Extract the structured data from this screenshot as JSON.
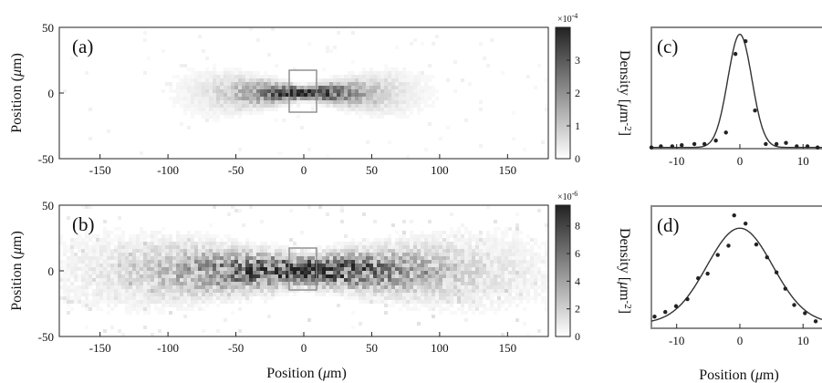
{
  "chart_data": [
    {
      "panel": "(a)",
      "type": "heatmap",
      "xlabel": "",
      "ylabel": "Position (μm)",
      "xlim": [
        -180,
        180
      ],
      "ylim": [
        50,
        -50
      ],
      "xticks": [
        "-150",
        "-100",
        "-50",
        "0",
        "50",
        "100",
        "150"
      ],
      "yticks": [
        "-50",
        "0",
        "50"
      ],
      "roi": {
        "x": [
          -5,
          10
        ],
        "y": [
          -12,
          12
        ]
      },
      "colorbar": {
        "label": "Density [μm⁻²]",
        "exponent": "×10⁻⁴",
        "range": [
          0,
          4
        ],
        "ticks": [
          "0",
          "1",
          "2",
          "3"
        ],
        "colormap": [
          "#ffffff",
          "#222222"
        ]
      },
      "cloud": {
        "peak_density": 3.8,
        "axial_sigma": 40,
        "halfwidth_center": 2.5,
        "halfwidth_edge": 24,
        "noise": "low"
      }
    },
    {
      "panel": "(b)",
      "type": "heatmap",
      "xlabel": "Position (μm)",
      "ylabel": "Position (μm)",
      "xlim": [
        -180,
        180
      ],
      "ylim": [
        50,
        -50
      ],
      "xticks": [
        "-150",
        "-100",
        "-50",
        "0",
        "50",
        "100",
        "150"
      ],
      "yticks": [
        "-50",
        "0",
        "50"
      ],
      "roi": {
        "x": [
          -5,
          10
        ],
        "y": [
          -12,
          12
        ]
      },
      "colorbar": {
        "label": "Density [μm⁻²]",
        "exponent": "×10⁻⁶",
        "range": [
          0,
          9.5
        ],
        "ticks": [
          "0",
          "2",
          "4",
          "6",
          "8"
        ],
        "colormap": [
          "#ffffff",
          "#222222"
        ]
      },
      "cloud": {
        "peak_density": 8,
        "axial_sigma": 80,
        "halfwidth_center": 6,
        "halfwidth_edge": 20,
        "noise": "high"
      }
    },
    {
      "panel": "(c)",
      "type": "scatter",
      "xlabel": "",
      "ylabel": "",
      "xlim": [
        -14,
        13
      ],
      "ylim": [
        0,
        1.05
      ],
      "xticks": [
        "-10",
        "0",
        "10"
      ],
      "points": [
        {
          "x": -14,
          "y": 0.01
        },
        {
          "x": -12.5,
          "y": 0.02
        },
        {
          "x": -10.7,
          "y": 0.02
        },
        {
          "x": -9.2,
          "y": 0.03
        },
        {
          "x": -7.2,
          "y": 0.04
        },
        {
          "x": -5.6,
          "y": 0.04
        },
        {
          "x": -3.8,
          "y": 0.07
        },
        {
          "x": -2.2,
          "y": 0.14
        },
        {
          "x": -0.7,
          "y": 0.82
        },
        {
          "x": 0.9,
          "y": 0.93
        },
        {
          "x": 2.4,
          "y": 0.33
        },
        {
          "x": 4.1,
          "y": 0.04
        },
        {
          "x": 5.8,
          "y": 0.04
        },
        {
          "x": 7.3,
          "y": 0.05
        },
        {
          "x": 9.0,
          "y": 0.02
        },
        {
          "x": 10.7,
          "y": 0.02
        },
        {
          "x": 12.3,
          "y": 0.01
        }
      ],
      "fit": {
        "model": "gaussian",
        "center": 0,
        "sigma": 1.9,
        "amplitude": 0.98,
        "offset": 0.01
      }
    },
    {
      "panel": "(d)",
      "type": "scatter",
      "xlabel": "Position (μm)",
      "ylabel": "",
      "xlim": [
        -14,
        13
      ],
      "ylim": [
        0,
        1.05
      ],
      "xticks": [
        "-10",
        "0",
        "10"
      ],
      "points": [
        {
          "x": -13.5,
          "y": 0.1
        },
        {
          "x": -11.8,
          "y": 0.14
        },
        {
          "x": -10.1,
          "y": 0.19
        },
        {
          "x": -8.3,
          "y": 0.25
        },
        {
          "x": -6.6,
          "y": 0.43
        },
        {
          "x": -5.1,
          "y": 0.47
        },
        {
          "x": -3.5,
          "y": 0.63
        },
        {
          "x": -1.8,
          "y": 0.71
        },
        {
          "x": -0.9,
          "y": 0.97
        },
        {
          "x": 0.9,
          "y": 0.9
        },
        {
          "x": 2.6,
          "y": 0.72
        },
        {
          "x": 4.3,
          "y": 0.61
        },
        {
          "x": 5.8,
          "y": 0.48
        },
        {
          "x": 7.2,
          "y": 0.34
        },
        {
          "x": 8.6,
          "y": 0.2
        },
        {
          "x": 10.3,
          "y": 0.13
        },
        {
          "x": 12.0,
          "y": 0.06
        }
      ],
      "fit": {
        "model": "gaussian",
        "center": 0,
        "sigma": 5.2,
        "amplitude": 0.82,
        "offset": 0.04
      }
    }
  ]
}
